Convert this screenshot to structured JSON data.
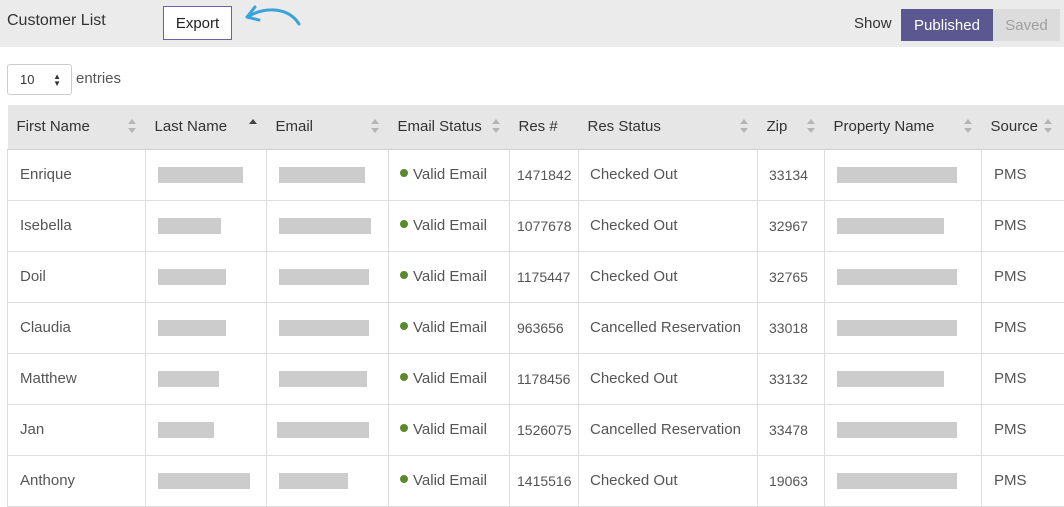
{
  "header": {
    "title": "Customer List",
    "export_label": "Export",
    "show_label": "Show",
    "toggle": {
      "published_label": "Published",
      "saved_label": "Saved",
      "active": "Published"
    },
    "accent_color": "#5b5891",
    "arrow_color": "#3aa3d8"
  },
  "entries": {
    "value": "10",
    "label": "entries"
  },
  "table": {
    "columns": [
      {
        "label": "First Name",
        "sort": "none"
      },
      {
        "label": "Last Name",
        "sort": "ascending"
      },
      {
        "label": "Email",
        "sort": "none"
      },
      {
        "label": "Email Status",
        "sort": "none"
      },
      {
        "label": "Res #",
        "sort": "none"
      },
      {
        "label": "Res Status",
        "sort": "none"
      },
      {
        "label": "Zip",
        "sort": "none"
      },
      {
        "label": "Property Name",
        "sort": "none"
      },
      {
        "label": "Source",
        "sort": "none"
      }
    ],
    "rows": [
      {
        "first_name": "Enrique",
        "email_status": "Valid Email",
        "res_no": "1471842",
        "res_status": "Checked Out",
        "zip": "33134",
        "source": "PMS"
      },
      {
        "first_name": "Isebella",
        "email_status": "Valid Email",
        "res_no": "1077678",
        "res_status": "Checked Out",
        "zip": "32967",
        "source": "PMS"
      },
      {
        "first_name": "Doil",
        "email_status": "Valid Email",
        "res_no": "1175447",
        "res_status": "Checked Out",
        "zip": "32765",
        "source": "PMS"
      },
      {
        "first_name": "Claudia",
        "email_status": "Valid Email",
        "res_no": "963656",
        "res_status": "Cancelled Reservation",
        "zip": "33018",
        "source": "PMS"
      },
      {
        "first_name": "Matthew",
        "email_status": "Valid Email",
        "res_no": "1178456",
        "res_status": "Checked Out",
        "zip": "33132",
        "source": "PMS"
      },
      {
        "first_name": "Jan",
        "email_status": "Valid Email",
        "res_no": "1526075",
        "res_status": "Cancelled Reservation",
        "zip": "33478",
        "source": "PMS"
      },
      {
        "first_name": "Anthony",
        "email_status": "Valid Email",
        "res_no": "1415516",
        "res_status": "Checked Out",
        "zip": "19063",
        "source": "PMS"
      }
    ],
    "redacted_columns": [
      "Last Name",
      "Email",
      "Property Name"
    ],
    "status_dot_color": "#5b8a2e"
  }
}
